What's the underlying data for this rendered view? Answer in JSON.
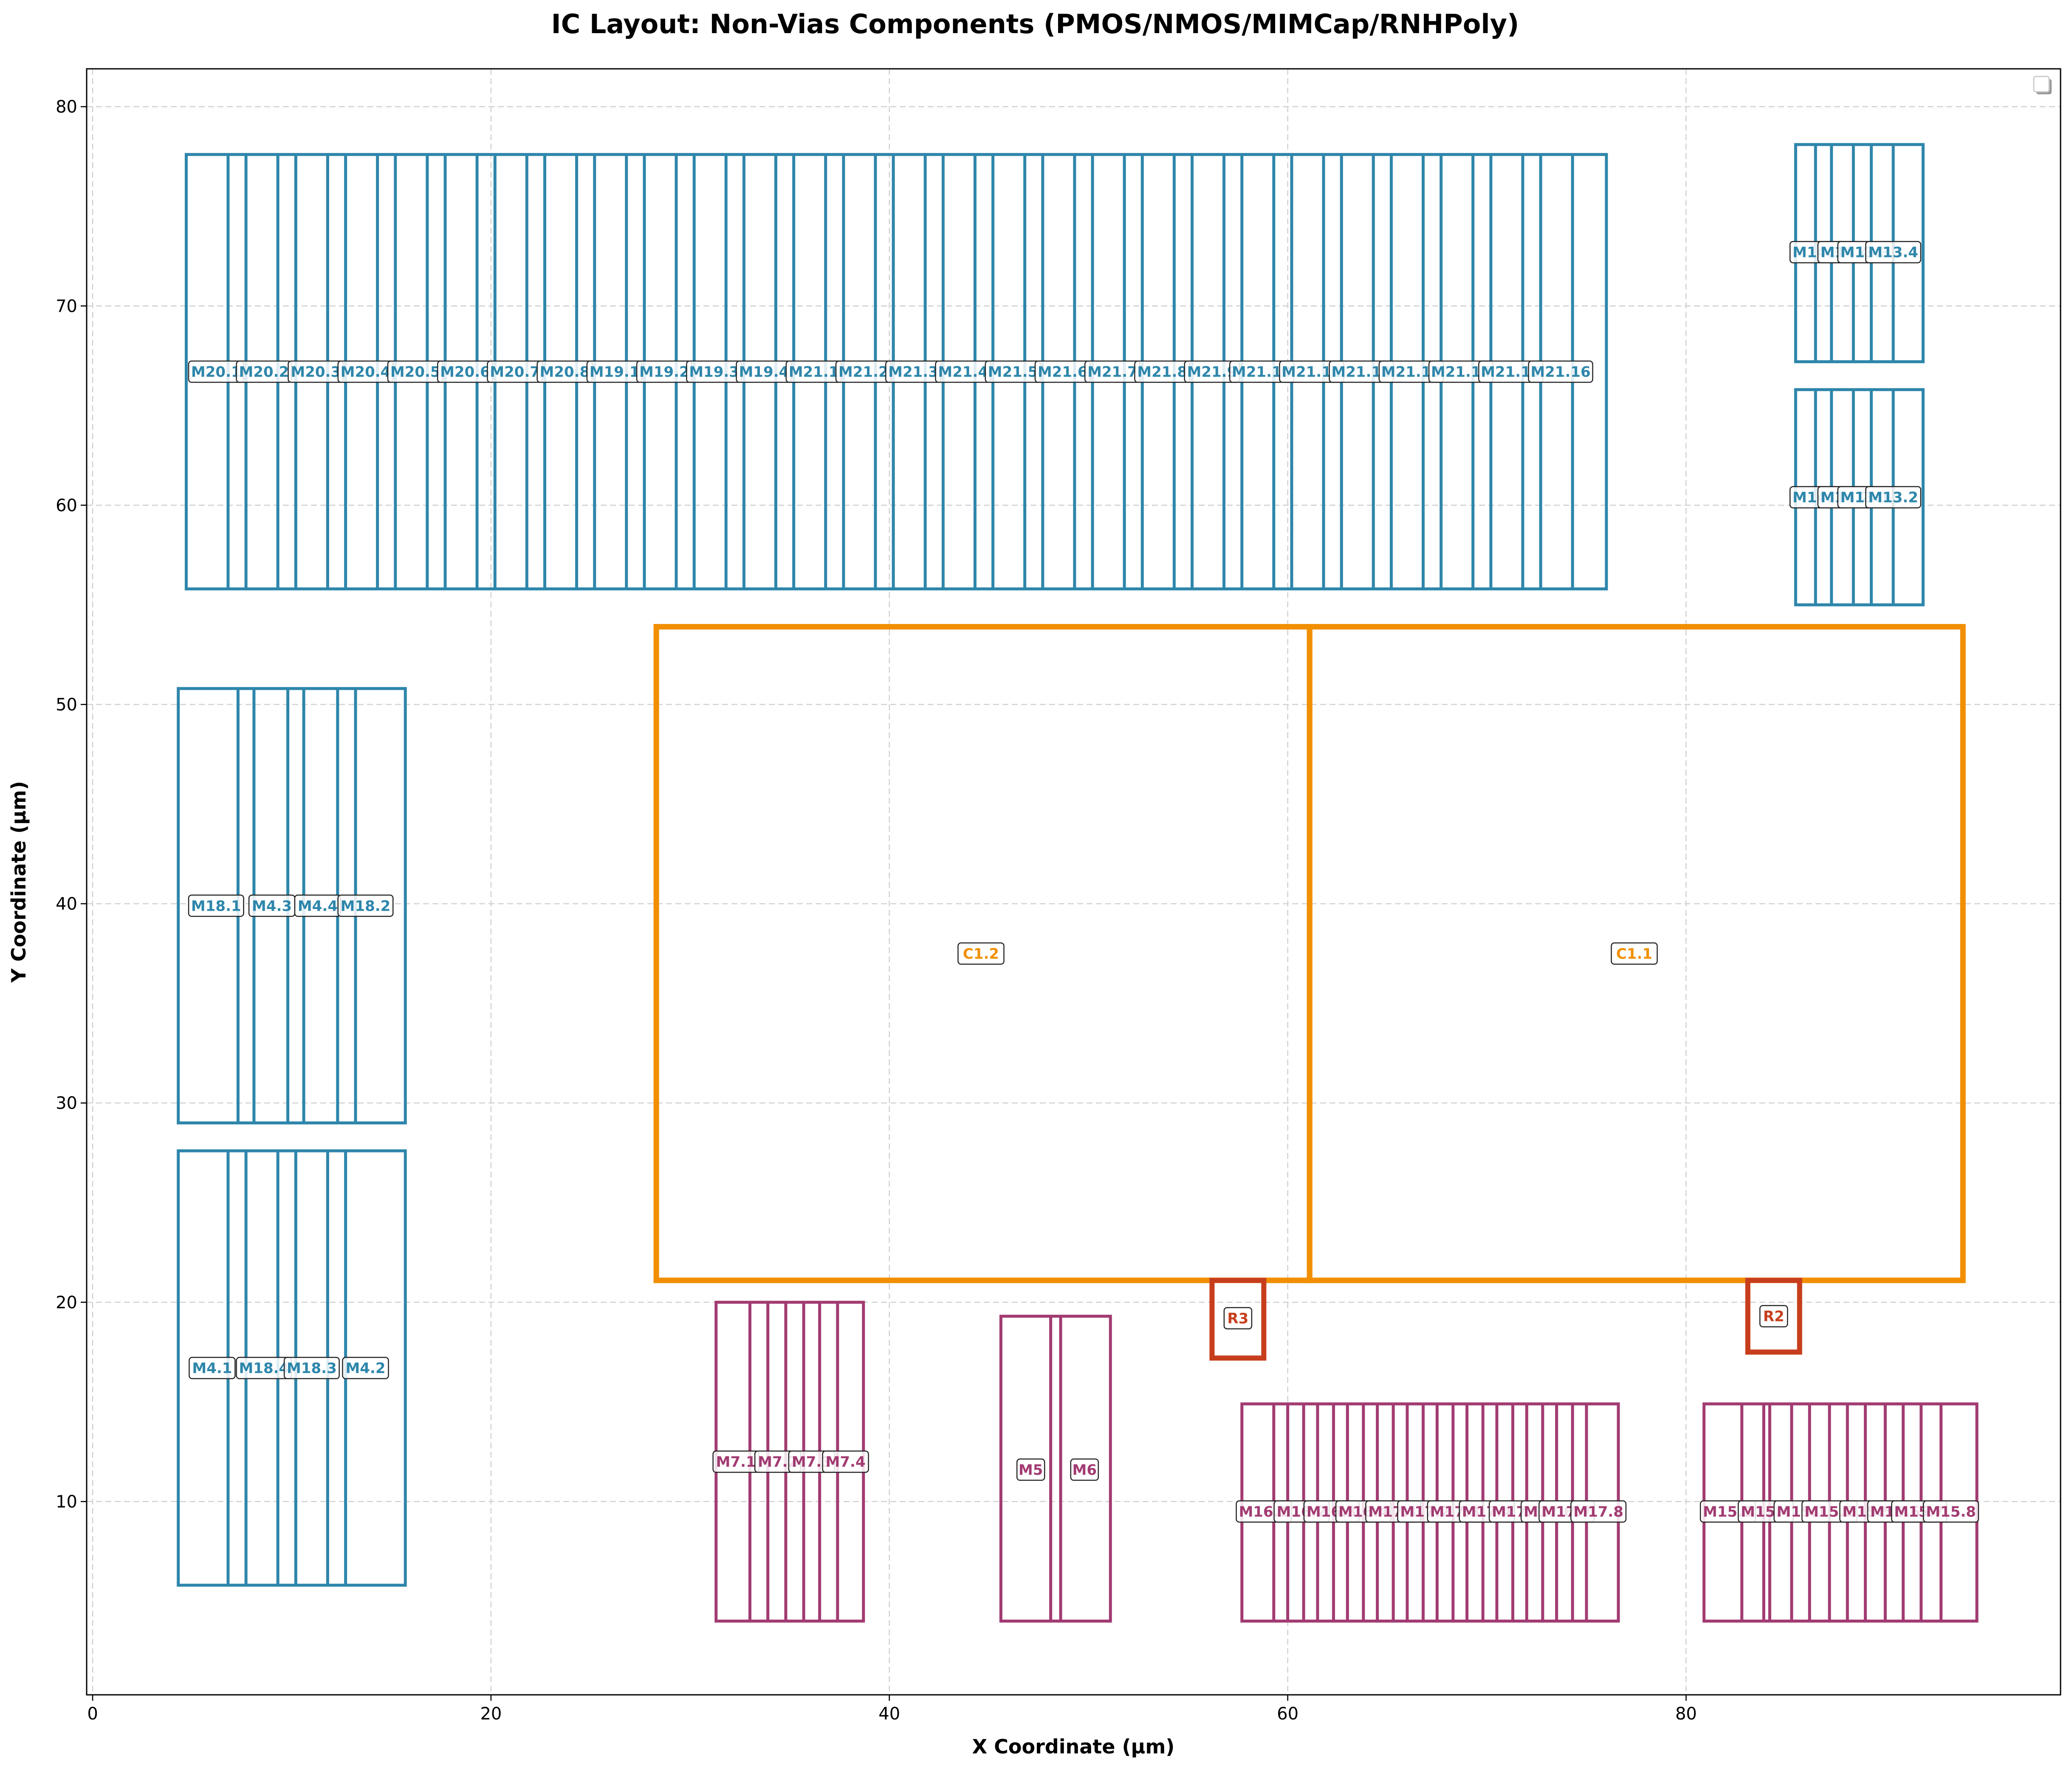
{
  "title": "IC Layout: Non-Vias Components (PMOS/NMOS/MIMCap/RNHPoly)",
  "xlabel": "X Coordinate (µm)",
  "ylabel": "Y Coordinate (µm)",
  "colors": {
    "pmos": "#2e86ab",
    "nmos": "#a23b72",
    "mimcap": "#f18f01",
    "rnhpoly": "#c73e1d",
    "grid": "#cfcfcf"
  },
  "chart_data": {
    "type": "layout",
    "xlim": [
      -0.3,
      98.8
    ],
    "ylim": [
      0.3,
      81.9
    ],
    "xticks": [
      0,
      20,
      40,
      60,
      80
    ],
    "yticks": [
      10,
      20,
      30,
      40,
      50,
      60,
      70,
      80
    ],
    "grid": true,
    "legend": "top-right",
    "components": [
      {
        "kind": "pmos",
        "name": "",
        "x0": 4.7,
        "x1": 76.0,
        "y0": 55.8,
        "y1": 77.6
      },
      {
        "kind": "pmos",
        "name": "",
        "x0": 85.5,
        "x1": 91.9,
        "y0": 67.2,
        "y1": 78.1
      },
      {
        "kind": "pmos",
        "name": "",
        "x0": 85.5,
        "x1": 91.9,
        "y0": 55.0,
        "y1": 65.8
      },
      {
        "kind": "pmos",
        "name": "",
        "x0": 4.3,
        "x1": 15.7,
        "y0": 29.0,
        "y1": 50.8
      },
      {
        "kind": "pmos",
        "name": "",
        "x0": 4.3,
        "x1": 15.7,
        "y0": 5.8,
        "y1": 27.6
      },
      {
        "kind": "nmos",
        "name": "",
        "x0": 31.3,
        "x1": 38.7,
        "y0": 4.0,
        "y1": 20.0
      },
      {
        "kind": "nmos",
        "name": "",
        "x0": 45.6,
        "x1": 51.1,
        "y0": 4.0,
        "y1": 19.3
      },
      {
        "kind": "nmos",
        "name": "",
        "x0": 57.7,
        "x1": 76.6,
        "y0": 4.0,
        "y1": 14.9
      },
      {
        "kind": "nmos",
        "name": "",
        "x0": 80.9,
        "x1": 94.6,
        "y0": 4.0,
        "y1": 14.9
      },
      {
        "kind": "mimcap",
        "name": "",
        "x0": 28.3,
        "x1": 61.1,
        "y0": 21.1,
        "y1": 53.9
      },
      {
        "kind": "mimcap",
        "name": "",
        "x0": 61.1,
        "x1": 93.9,
        "y0": 21.1,
        "y1": 53.9
      },
      {
        "kind": "rnhpoly",
        "name": "",
        "x0": 56.2,
        "x1": 58.8,
        "y0": 17.2,
        "y1": 21.1
      },
      {
        "kind": "rnhpoly",
        "name": "",
        "x0": 83.1,
        "x1": 85.7,
        "y0": 17.5,
        "y1": 21.1
      }
    ],
    "inner_lines": [
      {
        "kind": "pmos",
        "y0": 55.8,
        "y1": 77.6,
        "x": [
          6.8,
          7.7,
          9.3,
          10.2,
          11.8,
          12.7,
          14.3,
          15.2,
          16.8,
          17.7,
          19.3,
          20.2,
          21.8,
          22.7,
          24.3,
          25.2,
          26.8,
          27.7,
          29.3,
          30.2,
          31.8,
          32.7,
          34.3,
          35.2,
          36.8,
          37.7,
          39.3,
          40.2,
          41.8,
          42.7,
          44.3,
          45.2,
          46.8,
          47.7,
          49.3,
          50.2,
          51.8,
          52.7,
          54.3,
          55.2,
          56.8,
          57.7,
          59.3,
          60.2,
          61.8,
          62.7,
          64.3,
          65.2,
          66.8,
          67.7,
          69.3,
          70.2,
          71.8,
          72.7,
          74.3
        ]
      },
      {
        "kind": "pmos",
        "y0": 67.2,
        "y1": 78.1,
        "x": [
          86.5,
          87.3,
          88.4,
          89.3,
          90.4
        ]
      },
      {
        "kind": "pmos",
        "y0": 55.0,
        "y1": 65.8,
        "x": [
          86.5,
          87.3,
          88.4,
          89.3,
          90.4
        ]
      },
      {
        "kind": "pmos",
        "y0": 29.0,
        "y1": 50.8,
        "x": [
          7.3,
          8.1,
          9.8,
          10.6,
          12.3,
          13.2
        ]
      },
      {
        "kind": "pmos",
        "y0": 5.8,
        "y1": 27.6,
        "x": [
          6.8,
          7.7,
          9.3,
          10.2,
          11.8,
          12.7
        ]
      },
      {
        "kind": "nmos",
        "y0": 4.0,
        "y1": 20.0,
        "x": [
          33.0,
          33.9,
          34.8,
          35.7,
          36.5,
          37.4
        ]
      },
      {
        "kind": "nmos",
        "y0": 4.0,
        "y1": 19.3,
        "x": [
          48.1,
          48.6
        ]
      },
      {
        "kind": "nmos",
        "y0": 4.0,
        "y1": 14.9,
        "x": [
          59.3,
          60.0,
          60.8,
          61.5,
          62.3,
          63.0,
          63.8,
          64.5,
          65.3,
          66.0,
          66.8,
          67.5,
          68.3,
          69.0,
          69.8,
          70.5,
          71.3,
          72.0,
          72.8,
          73.5,
          74.3,
          75.0
        ]
      },
      {
        "kind": "nmos",
        "y0": 4.0,
        "y1": 14.9,
        "x": [
          82.8,
          83.9,
          84.2,
          85.3,
          86.2,
          87.2,
          88.1,
          89.0,
          90.0,
          90.9,
          91.8,
          92.8
        ]
      }
    ],
    "labels": [
      {
        "kind": "pmos",
        "text": "M20.1",
        "x": 6.2,
        "y": 66.7
      },
      {
        "kind": "pmos",
        "text": "M20.2",
        "x": 8.6,
        "y": 66.7
      },
      {
        "kind": "pmos",
        "text": "M20.3",
        "x": 11.2,
        "y": 66.7
      },
      {
        "kind": "pmos",
        "text": "M20.4",
        "x": 13.7,
        "y": 66.7
      },
      {
        "kind": "pmos",
        "text": "M20.5",
        "x": 16.2,
        "y": 66.7
      },
      {
        "kind": "pmos",
        "text": "M20.6",
        "x": 18.7,
        "y": 66.7
      },
      {
        "kind": "pmos",
        "text": "M20.7",
        "x": 21.2,
        "y": 66.7
      },
      {
        "kind": "pmos",
        "text": "M20.8",
        "x": 23.7,
        "y": 66.7
      },
      {
        "kind": "pmos",
        "text": "M19.1",
        "x": 26.2,
        "y": 66.7
      },
      {
        "kind": "pmos",
        "text": "M19.2",
        "x": 28.7,
        "y": 66.7
      },
      {
        "kind": "pmos",
        "text": "M19.3",
        "x": 31.2,
        "y": 66.7
      },
      {
        "kind": "pmos",
        "text": "M19.4",
        "x": 33.7,
        "y": 66.7
      },
      {
        "kind": "pmos",
        "text": "M21.1",
        "x": 36.2,
        "y": 66.7
      },
      {
        "kind": "pmos",
        "text": "M21.2",
        "x": 38.7,
        "y": 66.7
      },
      {
        "kind": "pmos",
        "text": "M21.3",
        "x": 41.2,
        "y": 66.7
      },
      {
        "kind": "pmos",
        "text": "M21.4",
        "x": 43.7,
        "y": 66.7
      },
      {
        "kind": "pmos",
        "text": "M21.5",
        "x": 46.2,
        "y": 66.7
      },
      {
        "kind": "pmos",
        "text": "M21.6",
        "x": 48.7,
        "y": 66.7
      },
      {
        "kind": "pmos",
        "text": "M21.7",
        "x": 51.2,
        "y": 66.7
      },
      {
        "kind": "pmos",
        "text": "M21.8",
        "x": 53.7,
        "y": 66.7
      },
      {
        "kind": "pmos",
        "text": "M21.9",
        "x": 56.2,
        "y": 66.7
      },
      {
        "kind": "pmos",
        "text": "M21.10",
        "x": 58.7,
        "y": 66.7
      },
      {
        "kind": "pmos",
        "text": "M21.11",
        "x": 61.2,
        "y": 66.7
      },
      {
        "kind": "pmos",
        "text": "M21.12",
        "x": 63.7,
        "y": 66.7
      },
      {
        "kind": "pmos",
        "text": "M21.13",
        "x": 66.2,
        "y": 66.7
      },
      {
        "kind": "pmos",
        "text": "M21.14",
        "x": 68.7,
        "y": 66.7
      },
      {
        "kind": "pmos",
        "text": "M21.15",
        "x": 71.2,
        "y": 66.7
      },
      {
        "kind": "pmos",
        "text": "M21.16",
        "x": 73.7,
        "y": 66.7
      },
      {
        "kind": "pmos",
        "text": "M14.3",
        "x": 86.6,
        "y": 72.7
      },
      {
        "kind": "pmos",
        "text": "M14.4",
        "x": 88.0,
        "y": 72.7
      },
      {
        "kind": "pmos",
        "text": "M13.3",
        "x": 89.0,
        "y": 72.7
      },
      {
        "kind": "pmos",
        "text": "M13.4",
        "x": 90.4,
        "y": 72.7
      },
      {
        "kind": "pmos",
        "text": "M14.1",
        "x": 86.6,
        "y": 60.4
      },
      {
        "kind": "pmos",
        "text": "M14.2",
        "x": 88.0,
        "y": 60.4
      },
      {
        "kind": "pmos",
        "text": "M13.1",
        "x": 89.0,
        "y": 60.4
      },
      {
        "kind": "pmos",
        "text": "M13.2",
        "x": 90.4,
        "y": 60.4
      },
      {
        "kind": "pmos",
        "text": "M18.1",
        "x": 6.2,
        "y": 39.9
      },
      {
        "kind": "pmos",
        "text": "M4.3",
        "x": 9.0,
        "y": 39.9
      },
      {
        "kind": "pmos",
        "text": "M4.4",
        "x": 11.3,
        "y": 39.9
      },
      {
        "kind": "pmos",
        "text": "M18.2",
        "x": 13.7,
        "y": 39.9
      },
      {
        "kind": "pmos",
        "text": "M4.1",
        "x": 6.0,
        "y": 16.7
      },
      {
        "kind": "pmos",
        "text": "M18.4",
        "x": 8.6,
        "y": 16.7
      },
      {
        "kind": "pmos",
        "text": "M18.3",
        "x": 11.0,
        "y": 16.7
      },
      {
        "kind": "pmos",
        "text": "M4.2",
        "x": 13.7,
        "y": 16.7
      },
      {
        "kind": "nmos",
        "text": "M7.1",
        "x": 32.3,
        "y": 12.0
      },
      {
        "kind": "nmos",
        "text": "M7.2",
        "x": 34.4,
        "y": 12.0
      },
      {
        "kind": "nmos",
        "text": "M7.3",
        "x": 36.1,
        "y": 12.0
      },
      {
        "kind": "nmos",
        "text": "M7.4",
        "x": 37.8,
        "y": 12.0
      },
      {
        "kind": "nmos",
        "text": "M5",
        "x": 47.1,
        "y": 11.6
      },
      {
        "kind": "nmos",
        "text": "M6",
        "x": 49.8,
        "y": 11.6
      },
      {
        "kind": "nmos",
        "text": "M16.1",
        "x": 58.8,
        "y": 9.5
      },
      {
        "kind": "nmos",
        "text": "M16.2",
        "x": 60.7,
        "y": 9.5
      },
      {
        "kind": "nmos",
        "text": "M16.3",
        "x": 62.2,
        "y": 9.5
      },
      {
        "kind": "nmos",
        "text": "M16.4",
        "x": 63.8,
        "y": 9.5
      },
      {
        "kind": "nmos",
        "text": "M17.1",
        "x": 65.3,
        "y": 9.5
      },
      {
        "kind": "nmos",
        "text": "M17.2",
        "x": 66.9,
        "y": 9.5
      },
      {
        "kind": "nmos",
        "text": "M17.3",
        "x": 68.4,
        "y": 9.5
      },
      {
        "kind": "nmos",
        "text": "M17.4",
        "x": 70.0,
        "y": 9.5
      },
      {
        "kind": "nmos",
        "text": "M17.5",
        "x": 71.5,
        "y": 9.5
      },
      {
        "kind": "nmos",
        "text": "M17.6",
        "x": 73.1,
        "y": 9.5
      },
      {
        "kind": "nmos",
        "text": "M17.7",
        "x": 74.0,
        "y": 9.5
      },
      {
        "kind": "nmos",
        "text": "M17.8",
        "x": 75.6,
        "y": 9.5
      },
      {
        "kind": "nmos",
        "text": "M15.3",
        "x": 82.1,
        "y": 9.5
      },
      {
        "kind": "nmos",
        "text": "M15.4",
        "x": 84.0,
        "y": 9.5
      },
      {
        "kind": "nmos",
        "text": "M15.1",
        "x": 85.8,
        "y": 9.5
      },
      {
        "kind": "nmos",
        "text": "M15.2",
        "x": 87.2,
        "y": 9.5
      },
      {
        "kind": "nmos",
        "text": "M15.5",
        "x": 89.1,
        "y": 9.5
      },
      {
        "kind": "nmos",
        "text": "M15.6",
        "x": 90.5,
        "y": 9.5
      },
      {
        "kind": "nmos",
        "text": "M15.7",
        "x": 91.7,
        "y": 9.5
      },
      {
        "kind": "nmos",
        "text": "M15.8",
        "x": 93.3,
        "y": 9.5
      },
      {
        "kind": "mimcap",
        "text": "C1.2",
        "x": 44.6,
        "y": 37.5
      },
      {
        "kind": "mimcap",
        "text": "C1.1",
        "x": 77.4,
        "y": 37.5
      },
      {
        "kind": "rnhpoly",
        "text": "R3",
        "x": 57.5,
        "y": 19.2
      },
      {
        "kind": "rnhpoly",
        "text": "R2",
        "x": 84.4,
        "y": 19.3
      }
    ]
  }
}
